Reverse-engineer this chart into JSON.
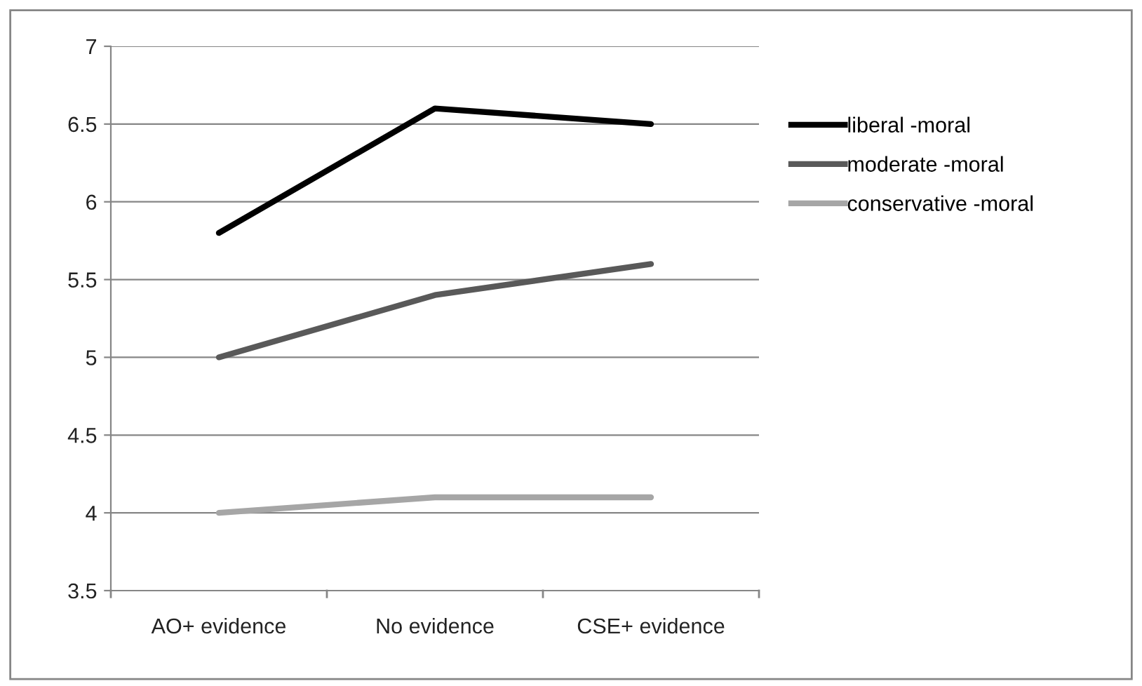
{
  "chart_data": {
    "type": "line",
    "categories": [
      "AO+ evidence",
      "No evidence",
      "CSE+ evidence"
    ],
    "series": [
      {
        "name": "liberal -moral",
        "color": "#000000",
        "values": [
          5.8,
          6.6,
          6.5
        ]
      },
      {
        "name": "moderate -moral",
        "color": "#595959",
        "values": [
          5.0,
          5.4,
          5.6
        ]
      },
      {
        "name": "conservative -moral",
        "color": "#a6a6a6",
        "values": [
          4.0,
          4.1,
          4.1
        ]
      }
    ],
    "ylim": [
      3.5,
      7
    ],
    "yticks": [
      3.5,
      4,
      4.5,
      5,
      5.5,
      6,
      6.5,
      7
    ],
    "grid": "y",
    "legend": "right",
    "marker": "none",
    "line_style": "solid"
  }
}
